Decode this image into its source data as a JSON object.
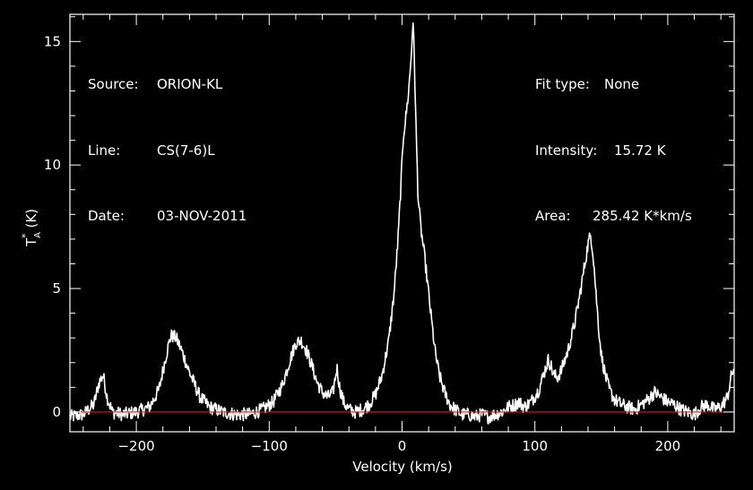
{
  "header": {
    "source_label": "Source:",
    "source_value": "ORION-KL",
    "line_label": "Line:",
    "line_value": "CS(7-6)L",
    "date_label": "Date:",
    "date_value": "03-NOV-2011",
    "fit_label": "Fit type:",
    "fit_value": "None",
    "intensity_label": "Intensity:",
    "intensity_value": "15.72 K",
    "area_label": "Area:",
    "area_value": "285.42 K*km/s"
  },
  "chart_data": {
    "type": "line",
    "xlabel": "Velocity (km/s)",
    "ylabel_main": "T",
    "ylabel_sup": "*",
    "ylabel_sub": "A",
    "ylabel_unit": "(K)",
    "xlim": [
      -250,
      250
    ],
    "ylim": [
      -0.8,
      16.1
    ],
    "xticks": [
      -200,
      -100,
      0,
      100,
      200
    ],
    "xtick_labels": [
      "−200",
      "−100",
      "0",
      "100",
      "200"
    ],
    "yticks": [
      0,
      5,
      10,
      15
    ],
    "ytick_labels": [
      "0",
      "5",
      "10",
      "15"
    ],
    "baseline": 0,
    "colors": {
      "background": "#000000",
      "trace": "#ffffff",
      "baseline": "#cc2222",
      "axes": "#ffffff"
    },
    "series": [
      {
        "x": [
          -250,
          -240,
          -232,
          -228,
          -225,
          -222,
          -218,
          -210,
          -200,
          -190,
          -183,
          -178,
          -174,
          -170,
          -166,
          -160,
          -152,
          -145,
          -135,
          -125,
          -115,
          -105,
          -97,
          -90,
          -85,
          -80,
          -76,
          -72,
          -68,
          -64,
          -60,
          -56,
          -52,
          -49,
          -47,
          -44,
          -40,
          -35,
          -30,
          -25,
          -20,
          -15,
          -10,
          -6,
          -3,
          -1,
          1,
          3,
          5,
          7,
          8,
          9,
          10,
          12,
          14,
          16,
          18,
          20,
          22,
          25,
          28,
          32,
          36,
          40,
          45,
          50,
          55,
          60,
          65,
          70,
          75,
          80,
          85,
          88,
          92,
          97,
          103,
          107,
          110,
          112,
          114,
          117,
          120,
          125,
          130,
          134,
          137,
          140,
          142,
          144,
          146,
          148,
          150,
          153,
          156,
          160,
          165,
          170,
          175,
          180,
          185,
          190,
          195,
          200,
          205,
          210,
          215,
          220,
          225,
          230,
          235,
          240,
          245,
          248,
          250
        ],
        "y": [
          -0.2,
          -0.1,
          0.3,
          1.2,
          1.5,
          0.6,
          0.0,
          -0.1,
          0.0,
          0.2,
          0.9,
          2.2,
          3.1,
          3.0,
          2.5,
          1.6,
          0.6,
          0.2,
          0.0,
          -0.1,
          -0.1,
          0.1,
          0.4,
          1.1,
          2.0,
          2.8,
          2.9,
          2.5,
          1.9,
          1.2,
          0.8,
          0.6,
          0.8,
          1.8,
          1.0,
          0.4,
          0.1,
          0.0,
          0.1,
          0.3,
          0.7,
          1.5,
          2.9,
          4.8,
          7.0,
          9.0,
          11.2,
          12.0,
          13.0,
          14.5,
          15.72,
          15.0,
          12.5,
          8.8,
          7.5,
          6.7,
          5.8,
          4.8,
          3.8,
          2.4,
          1.5,
          0.8,
          0.3,
          0.1,
          -0.1,
          -0.1,
          -0.2,
          -0.1,
          -0.2,
          -0.1,
          0.0,
          0.2,
          0.3,
          0.4,
          0.2,
          0.4,
          0.9,
          1.6,
          2.1,
          1.9,
          1.5,
          1.4,
          1.7,
          2.5,
          3.6,
          4.8,
          5.8,
          6.8,
          7.2,
          6.3,
          4.8,
          3.4,
          2.3,
          1.5,
          0.9,
          0.5,
          0.3,
          0.2,
          0.1,
          0.3,
          0.5,
          0.8,
          0.6,
          0.4,
          0.3,
          0.1,
          0.0,
          -0.1,
          0.2,
          0.3,
          0.1,
          0.2,
          0.6,
          1.5,
          1.8
        ]
      }
    ]
  }
}
